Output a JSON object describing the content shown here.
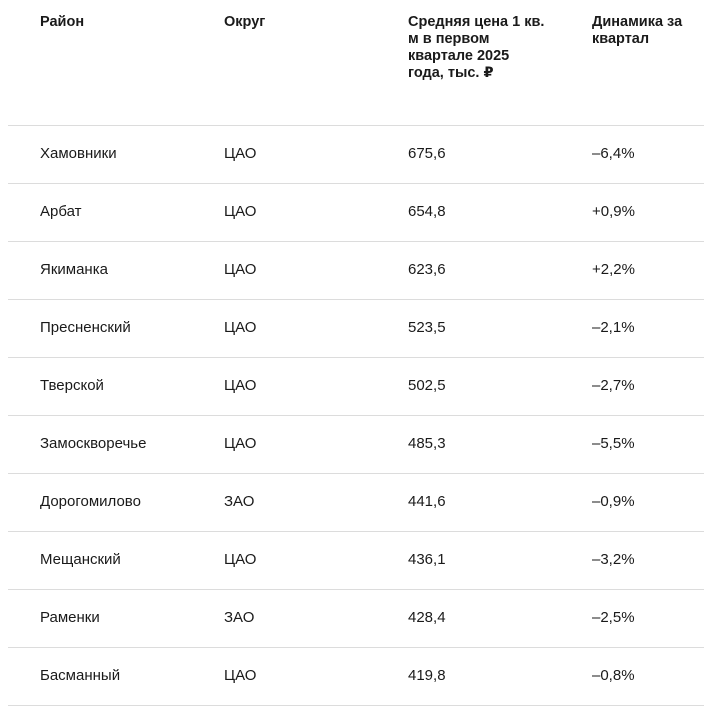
{
  "headers": {
    "district": "Район",
    "okrug": "Округ",
    "price": "Средняя цена 1 кв. м в первом квартале 2025 года, тыс. ₽",
    "dynamics": "Динамика за квартал"
  },
  "rows": [
    {
      "district": "Хамовники",
      "okrug": "ЦАО",
      "price": "675,6",
      "dynamics": "–6,4%"
    },
    {
      "district": "Арбат",
      "okrug": "ЦАО",
      "price": "654,8",
      "dynamics": "+0,9%"
    },
    {
      "district": "Якиманка",
      "okrug": "ЦАО",
      "price": "623,6",
      "dynamics": "+2,2%"
    },
    {
      "district": "Пресненский",
      "okrug": "ЦАО",
      "price": "523,5",
      "dynamics": "–2,1%"
    },
    {
      "district": "Тверской",
      "okrug": "ЦАО",
      "price": "502,5",
      "dynamics": "–2,7%"
    },
    {
      "district": "Замоскворечье",
      "okrug": "ЦАО",
      "price": "485,3",
      "dynamics": "–5,5%"
    },
    {
      "district": "Дорогомилово",
      "okrug": "ЗАО",
      "price": "441,6",
      "dynamics": "–0,9%"
    },
    {
      "district": "Мещанский",
      "okrug": "ЦАО",
      "price": "436,1",
      "dynamics": "–3,2%"
    },
    {
      "district": "Раменки",
      "okrug": "ЗАО",
      "price": "428,4",
      "dynamics": "–2,5%"
    },
    {
      "district": "Басманный",
      "okrug": "ЦАО",
      "price": "419,8",
      "dynamics": "–0,8%"
    }
  ]
}
